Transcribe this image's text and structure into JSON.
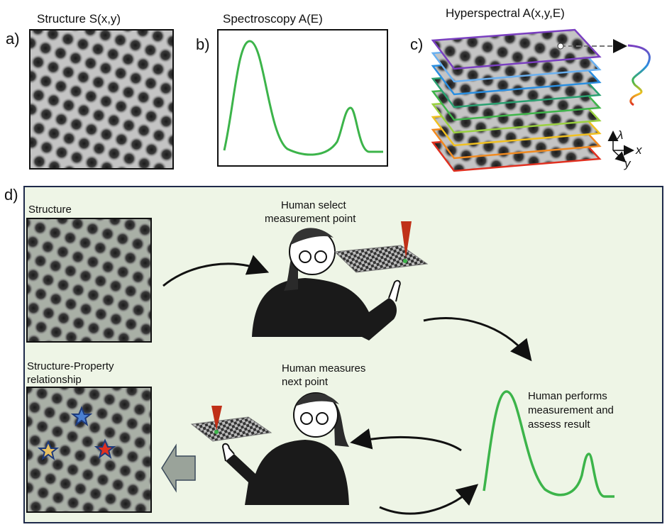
{
  "panels": {
    "a": {
      "letter": "a)",
      "title": "Structure S(x,y)"
    },
    "b": {
      "letter": "b)",
      "title": "Spectroscopy A(E)"
    },
    "c": {
      "letter": "c)",
      "title": "Hyperspectral A(x,y,E)",
      "axes": [
        "λ",
        "x",
        "y"
      ]
    },
    "d": {
      "letter": "d)",
      "structure": "Structure",
      "select": [
        "Human select",
        "measurement point"
      ],
      "relationship": [
        "Structure-Property",
        "relationship"
      ],
      "next": [
        "Human measures",
        "next point"
      ],
      "perform": [
        "Human performs",
        "measurement and",
        "assess result"
      ]
    }
  }
}
